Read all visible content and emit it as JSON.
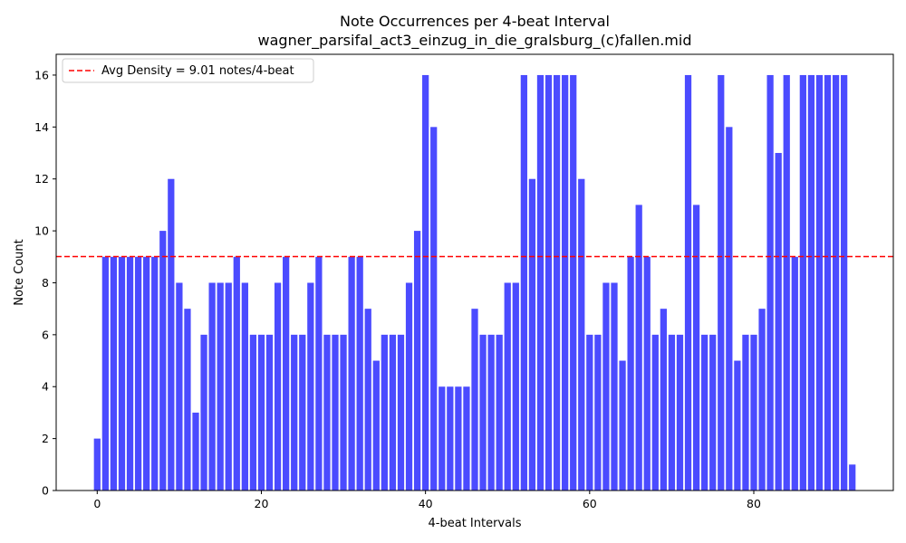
{
  "chart_data": {
    "type": "bar",
    "title": "Note Occurrences per 4-beat Interval",
    "subtitle": "wagner_parsifal_act3_einzug_in_die_gralsburg_(c)fallen.mid",
    "xlabel": "4-beat Intervals",
    "ylabel": "Note Count",
    "xlim": [
      -5,
      97
    ],
    "ylim": [
      0,
      16.8
    ],
    "xticks": [
      0,
      20,
      40,
      60,
      80
    ],
    "yticks": [
      0,
      2,
      4,
      6,
      8,
      10,
      12,
      14,
      16
    ],
    "grid": false,
    "bar_color": "#4b4bff",
    "x": [
      0,
      1,
      2,
      3,
      4,
      5,
      6,
      7,
      8,
      9,
      10,
      11,
      12,
      13,
      14,
      15,
      16,
      17,
      18,
      19,
      20,
      21,
      22,
      23,
      24,
      25,
      26,
      27,
      28,
      29,
      30,
      31,
      32,
      33,
      34,
      35,
      36,
      37,
      38,
      39,
      40,
      41,
      42,
      43,
      44,
      45,
      46,
      47,
      48,
      49,
      50,
      51,
      52,
      53,
      54,
      55,
      56,
      57,
      58,
      59,
      60,
      61,
      62,
      63,
      64,
      65,
      66,
      67,
      68,
      69,
      70,
      71,
      72,
      73,
      74,
      75,
      76,
      77,
      78,
      79,
      80,
      81,
      82,
      83,
      84,
      85,
      86,
      87,
      88,
      89,
      90,
      91,
      92
    ],
    "values": [
      2,
      9,
      9,
      9,
      9,
      9,
      9,
      9,
      10,
      12,
      8,
      7,
      3,
      6,
      8,
      8,
      8,
      9,
      8,
      6,
      6,
      6,
      8,
      9,
      6,
      6,
      8,
      9,
      6,
      6,
      6,
      9,
      9,
      7,
      5,
      6,
      6,
      6,
      8,
      10,
      16,
      14,
      4,
      4,
      4,
      4,
      7,
      6,
      6,
      6,
      8,
      8,
      16,
      12,
      16,
      16,
      16,
      16,
      16,
      12,
      6,
      6,
      8,
      8,
      5,
      9,
      11,
      9,
      6,
      7,
      6,
      6,
      16,
      11,
      6,
      6,
      16,
      14,
      5,
      6,
      6,
      7,
      16,
      13,
      16,
      9,
      16,
      16,
      16,
      16,
      16,
      16,
      1
    ],
    "reference_line": {
      "value": 9.01,
      "color": "#ff0000",
      "style": "dashed",
      "label": "Avg Density = 9.01 notes/4-beat"
    },
    "legend": {
      "position": "top-left"
    }
  }
}
